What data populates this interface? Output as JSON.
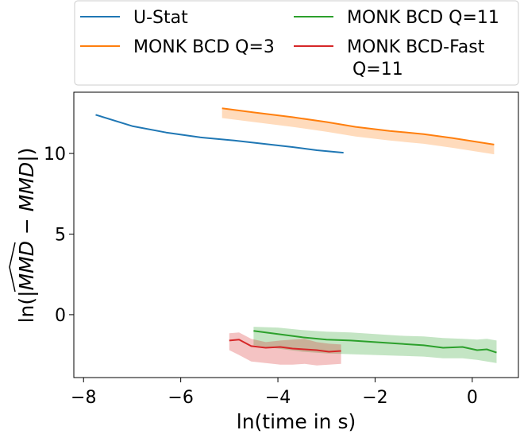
{
  "chart_data": {
    "type": "line",
    "title": "",
    "xlabel": "ln(time in s)",
    "ylabel_parts": {
      "prefix": "ln(|",
      "hat": "MMD",
      "mid": " − ",
      "plain": "MMD",
      "suffix": "|)"
    },
    "xlim": [
      -8.2,
      0.95
    ],
    "ylim": [
      -3.9,
      13.8
    ],
    "xticks": [
      -8,
      -6,
      -4,
      -2,
      0
    ],
    "xtick_labels": [
      "−8",
      "−6",
      "−4",
      "−2",
      "0"
    ],
    "yticks": [
      0,
      5,
      10
    ],
    "ytick_labels": [
      "0",
      "5",
      "10"
    ],
    "grid": false,
    "legend_position": "top",
    "series": [
      {
        "name": "U-Stat",
        "legend_lines": [
          "U-Stat"
        ],
        "color": "#1f77b4",
        "x": [
          -7.75,
          -7.0,
          -6.3,
          -5.6,
          -4.9,
          -4.3,
          -3.7,
          -3.2,
          -2.65
        ],
        "y": [
          12.4,
          11.7,
          11.3,
          11.0,
          10.8,
          10.6,
          10.4,
          10.2,
          10.05
        ],
        "band": null
      },
      {
        "name": "MONK BCD Q=3",
        "legend_lines": [
          "MONK BCD Q=3"
        ],
        "color": "#ff7f0e",
        "x": [
          -5.15,
          -4.5,
          -3.7,
          -3.0,
          -2.4,
          -1.7,
          -1.0,
          -0.4,
          0.45
        ],
        "y": [
          12.8,
          12.55,
          12.25,
          11.95,
          11.65,
          11.4,
          11.2,
          10.95,
          10.55
        ],
        "band": {
          "upper": [
            12.8,
            12.55,
            12.25,
            11.95,
            11.65,
            11.4,
            11.2,
            10.95,
            10.55
          ],
          "lower": [
            12.2,
            11.95,
            11.65,
            11.35,
            11.05,
            10.8,
            10.6,
            10.35,
            9.95
          ]
        }
      },
      {
        "name": "MONK BCD Q=11",
        "legend_lines": [
          "MONK BCD Q=11"
        ],
        "color": "#2ca02c",
        "x": [
          -4.5,
          -4.0,
          -3.5,
          -3.0,
          -2.5,
          -2.0,
          -1.5,
          -1.0,
          -0.6,
          -0.2,
          0.1,
          0.3,
          0.5
        ],
        "y": [
          -1.0,
          -1.2,
          -1.4,
          -1.55,
          -1.6,
          -1.7,
          -1.8,
          -1.9,
          -2.05,
          -2.0,
          -2.2,
          -2.15,
          -2.35
        ],
        "band": {
          "upper": [
            -0.75,
            -0.8,
            -0.95,
            -1.05,
            -1.1,
            -1.2,
            -1.3,
            -1.35,
            -1.45,
            -1.5,
            -1.55,
            -1.5,
            -1.6
          ],
          "lower": [
            -1.9,
            -2.1,
            -2.3,
            -2.4,
            -2.45,
            -2.5,
            -2.55,
            -2.6,
            -2.7,
            -2.7,
            -2.8,
            -2.9,
            -3.0
          ]
        }
      },
      {
        "name": "MONK BCD-Fast Q=11",
        "legend_lines": [
          "MONK BCD-Fast",
          " Q=11"
        ],
        "color": "#d62728",
        "x": [
          -5.0,
          -4.8,
          -4.55,
          -4.25,
          -3.95,
          -3.7,
          -3.45,
          -3.2,
          -2.95,
          -2.7
        ],
        "y": [
          -1.6,
          -1.55,
          -1.95,
          -2.05,
          -2.0,
          -2.1,
          -2.15,
          -2.2,
          -2.3,
          -2.25
        ],
        "band": {
          "upper": [
            -1.15,
            -1.1,
            -1.5,
            -1.7,
            -1.6,
            -1.55,
            -1.5,
            -1.7,
            -1.8,
            -1.85
          ],
          "lower": [
            -2.2,
            -2.5,
            -2.9,
            -3.0,
            -3.1,
            -3.1,
            -3.05,
            -3.15,
            -3.1,
            -3.05
          ]
        }
      }
    ]
  }
}
